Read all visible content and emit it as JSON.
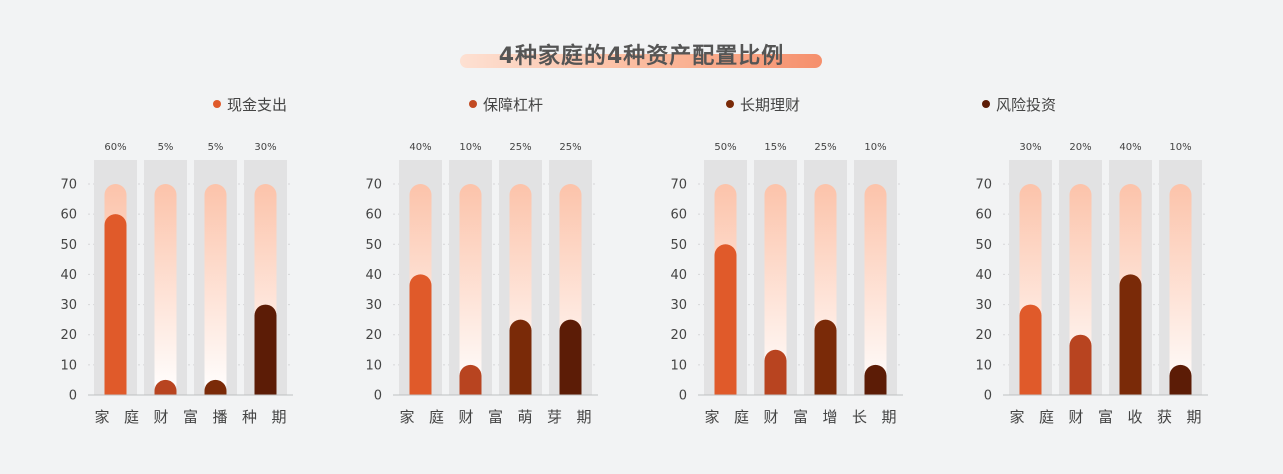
{
  "title": "4种家庭的4种资产配置比例",
  "colors": {
    "c1": "#e05a2a",
    "c2": "#b84420",
    "c3": "#7a2a08",
    "c4": "#5c1c06",
    "track_top": "#fcc3aa",
    "column_bg": "#e2e2e3"
  },
  "legend": [
    {
      "label": "现金支出",
      "color": "#e05a2a"
    },
    {
      "label": "保障杠杆",
      "color": "#c24a22"
    },
    {
      "label": "长期理财",
      "color": "#7a2a08"
    },
    {
      "label": "风险投资",
      "color": "#5c1c06"
    }
  ],
  "chart_data": [
    {
      "type": "bar",
      "series_name": "现金支出",
      "categories": [
        "家庭",
        "财富",
        "播种",
        "期"
      ],
      "x_tick_labels": [
        "家",
        "庭",
        "财",
        "富",
        "播",
        "种",
        "期"
      ],
      "values": [
        60,
        5,
        5,
        30
      ],
      "data_labels": [
        "60%",
        "5%",
        "5%",
        "30%"
      ],
      "bar_colors": [
        "#e05a2a",
        "#b84420",
        "#7a2a08",
        "#5c1c06"
      ],
      "ylim": [
        0,
        70
      ],
      "yticks": [
        "0",
        "10",
        "20",
        "30",
        "40",
        "50",
        "60",
        "70"
      ]
    },
    {
      "type": "bar",
      "series_name": "保障杠杆",
      "categories": [
        "家庭",
        "财富",
        "萌芽",
        "期"
      ],
      "x_tick_labels": [
        "家",
        "庭",
        "财",
        "富",
        "萌",
        "芽",
        "期"
      ],
      "values": [
        40,
        10,
        25,
        25
      ],
      "data_labels": [
        "40%",
        "10%",
        "25%",
        "25%"
      ],
      "bar_colors": [
        "#e05a2a",
        "#b84420",
        "#7a2a08",
        "#5c1c06"
      ],
      "ylim": [
        0,
        70
      ],
      "yticks": [
        "0",
        "10",
        "20",
        "30",
        "40",
        "50",
        "60",
        "70"
      ]
    },
    {
      "type": "bar",
      "series_name": "长期理财",
      "categories": [
        "家庭",
        "财富",
        "增长",
        "期"
      ],
      "x_tick_labels": [
        "家",
        "庭",
        "财",
        "富",
        "增",
        "长",
        "期"
      ],
      "values": [
        50,
        15,
        25,
        10
      ],
      "data_labels": [
        "50%",
        "15%",
        "25%",
        "10%"
      ],
      "bar_colors": [
        "#e05a2a",
        "#b84420",
        "#7a2a08",
        "#5c1c06"
      ],
      "ylim": [
        0,
        70
      ],
      "yticks": [
        "0",
        "10",
        "20",
        "30",
        "40",
        "50",
        "60",
        "70"
      ]
    },
    {
      "type": "bar",
      "series_name": "风险投资",
      "categories": [
        "家庭",
        "财富",
        "收获",
        "期"
      ],
      "x_tick_labels": [
        "家",
        "庭",
        "财",
        "富",
        "收",
        "获",
        "期"
      ],
      "values": [
        30,
        20,
        40,
        10
      ],
      "data_labels": [
        "30%",
        "20%",
        "40%",
        "10%"
      ],
      "bar_colors": [
        "#e05a2a",
        "#b84420",
        "#7a2a08",
        "#5c1c06"
      ],
      "ylim": [
        0,
        70
      ],
      "yticks": [
        "0",
        "10",
        "20",
        "30",
        "40",
        "50",
        "60",
        "70"
      ]
    }
  ]
}
